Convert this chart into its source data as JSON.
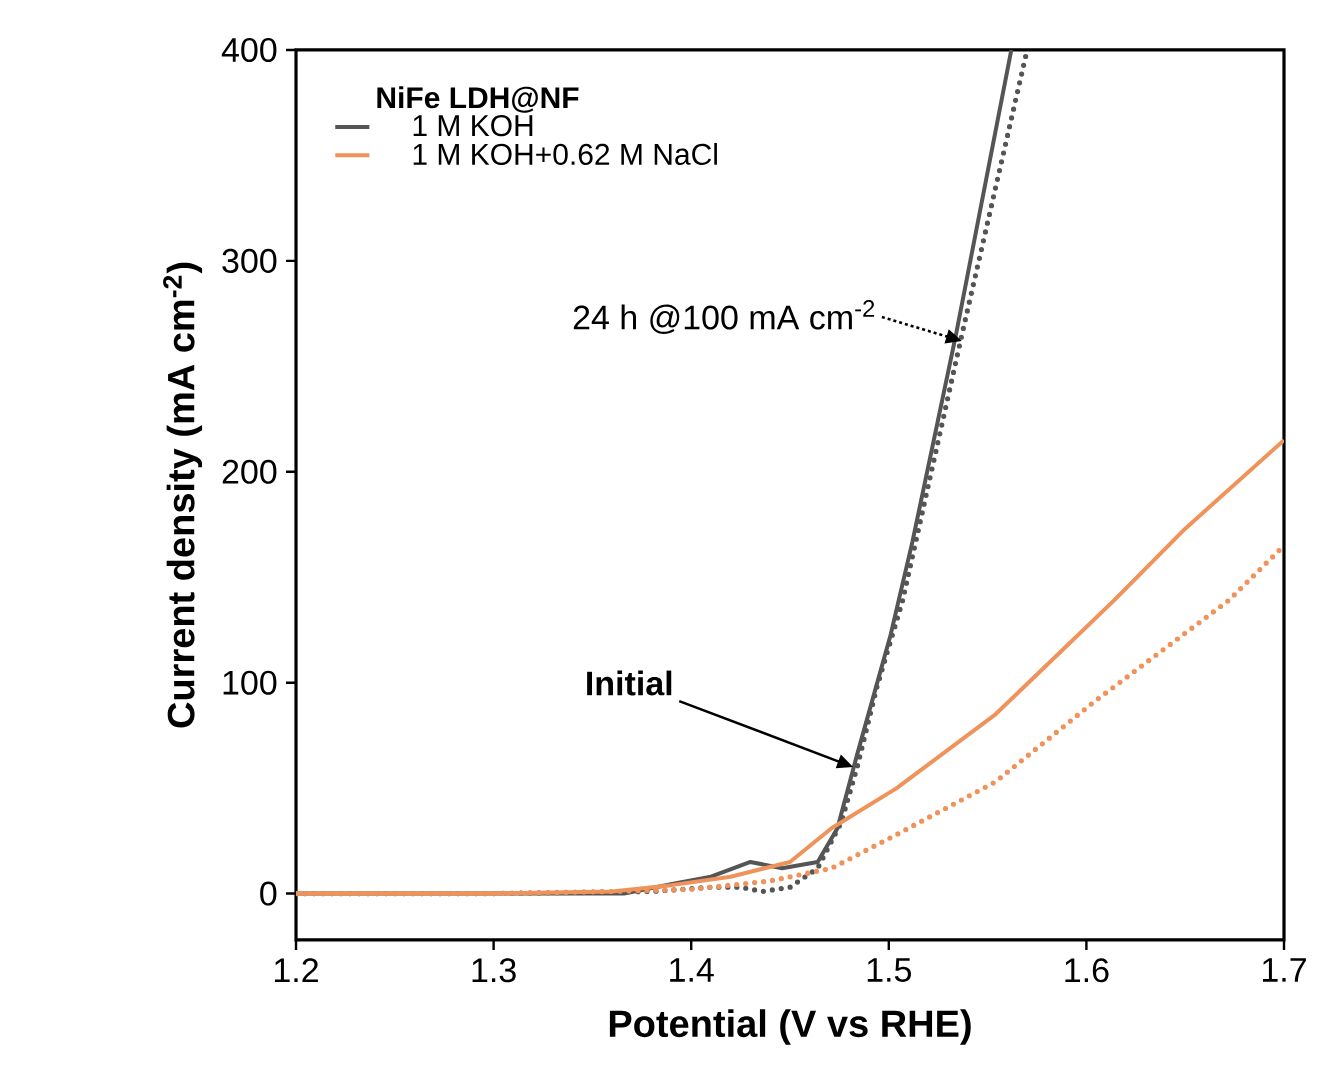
{
  "chart_data": {
    "type": "line",
    "xlabel": "Potential (V vs RHE)",
    "ylabel": "Current density (mA cm$^{-2}$)",
    "legend_title": "NiFe LDH@NF",
    "legend": "top left",
    "xlim": [
      1.2,
      1.7
    ],
    "ylim": [
      -22,
      400
    ],
    "xticks": [
      1.2,
      1.3,
      1.4,
      1.5,
      1.6,
      1.7
    ],
    "yticks": [
      0,
      100,
      200,
      300,
      400
    ],
    "series": [
      {
        "name": "1 M KOH",
        "color": "#555555",
        "line_style": "solid",
        "x": [
          1.2,
          1.3,
          1.366,
          1.393,
          1.41,
          1.43,
          1.446,
          1.464,
          1.474,
          1.484,
          1.501,
          1.512,
          1.534,
          1.562
        ],
        "values": [
          0,
          0,
          0,
          5,
          8,
          15,
          12,
          15,
          31,
          66,
          123,
          167,
          265,
          400
        ]
      },
      {
        "color": "#555555",
        "line_style": "dotted",
        "x": [
          1.2,
          1.3,
          1.38,
          1.41,
          1.425,
          1.436,
          1.45,
          1.464,
          1.476,
          1.484,
          1.494,
          1.507,
          1.537,
          1.57
        ],
        "values": [
          0,
          0,
          1,
          3,
          3,
          1,
          3,
          12,
          34,
          60,
          98,
          139,
          265,
          400
        ]
      },
      {
        "name": "1 M KOH+0.62 M NaCl",
        "color": "#f0935a",
        "line_style": "solid",
        "x": [
          1.2,
          1.3,
          1.36,
          1.39,
          1.42,
          1.45,
          1.471,
          1.504,
          1.554,
          1.614,
          1.65,
          1.7
        ],
        "values": [
          0,
          0,
          1,
          4,
          8,
          15,
          31,
          50,
          85,
          139,
          173,
          215
        ]
      },
      {
        "color": "#f0935a",
        "line_style": "dotted",
        "x": [
          1.2,
          1.3,
          1.36,
          1.4,
          1.44,
          1.471,
          1.504,
          1.554,
          1.604,
          1.672,
          1.7
        ],
        "values": [
          0,
          0,
          1,
          2,
          6,
          12,
          28,
          53,
          91,
          139,
          165
        ]
      }
    ],
    "annotations": [
      {
        "text": "Initial",
        "x": 1.482,
        "y": 60
      },
      {
        "text": "24 h @100 mA cm$^{-2}$",
        "x": 1.537,
        "y": 262
      }
    ]
  }
}
